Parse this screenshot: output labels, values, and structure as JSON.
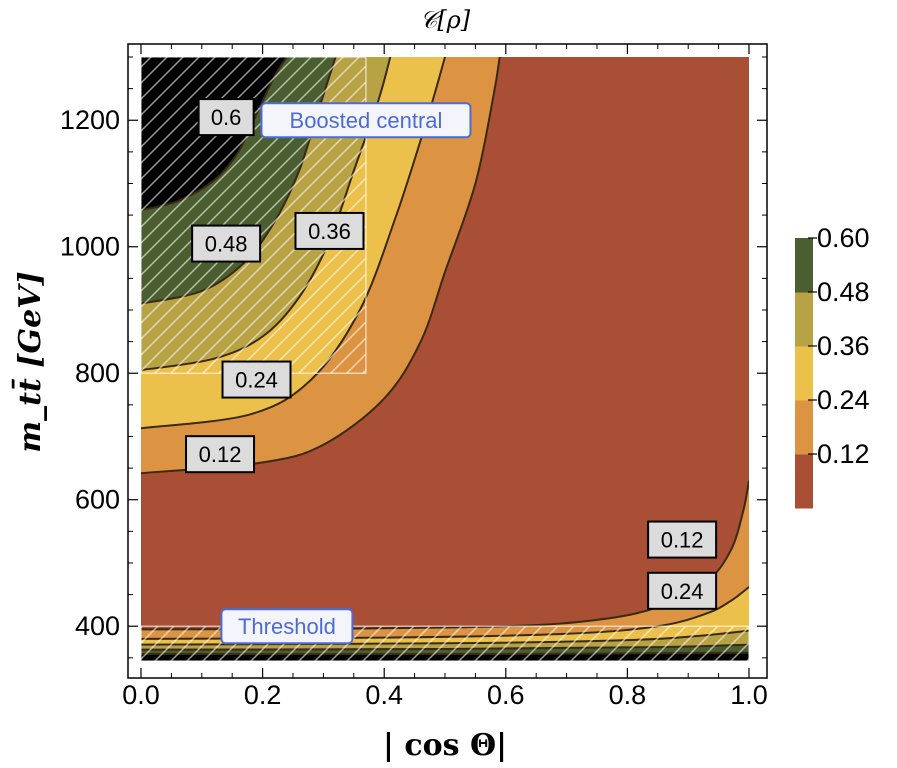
{
  "chart_data": {
    "type": "contour",
    "title": "𝒞[ρ]",
    "xlabel": "| cos Θ|",
    "ylabel": "m_tt̄ [GeV]",
    "xlim": [
      0.0,
      1.0
    ],
    "ylim": [
      345,
      1300
    ],
    "x_ticks": [
      0.0,
      0.2,
      0.4,
      0.6,
      0.8,
      1.0
    ],
    "x_tick_labels": [
      "0.0",
      "0.2",
      "0.4",
      "0.6",
      "0.8",
      "1.0"
    ],
    "y_ticks": [
      400,
      600,
      800,
      1000,
      1200
    ],
    "y_tick_labels": [
      "400",
      "600",
      "800",
      "1000",
      "1200"
    ],
    "contour_levels": [
      0.12,
      0.24,
      0.36,
      0.48,
      0.6
    ],
    "band_colors": [
      "#a84f35",
      "#dc9443",
      "#ecc14b",
      "#b8a344",
      "#4a5e2f"
    ],
    "contours": [
      {
        "level": 0.12,
        "points": [
          [
            0.0,
            642
          ],
          [
            0.2,
            659
          ],
          [
            0.3,
            687
          ],
          [
            0.4,
            760
          ],
          [
            0.46,
            850
          ],
          [
            0.5,
            960
          ],
          [
            0.55,
            1100
          ],
          [
            0.58,
            1240
          ],
          [
            0.59,
            1300
          ]
        ]
      },
      {
        "level": 0.24,
        "points": [
          [
            0.0,
            713
          ],
          [
            0.18,
            735
          ],
          [
            0.28,
            790
          ],
          [
            0.36,
            900
          ],
          [
            0.42,
            1050
          ],
          [
            0.47,
            1200
          ],
          [
            0.5,
            1300
          ]
        ]
      },
      {
        "level": 0.36,
        "points": [
          [
            0.0,
            805
          ],
          [
            0.12,
            823
          ],
          [
            0.2,
            858
          ],
          [
            0.26,
            920
          ],
          [
            0.31,
            1010
          ],
          [
            0.35,
            1120
          ],
          [
            0.39,
            1230
          ],
          [
            0.41,
            1300
          ]
        ]
      },
      {
        "level": 0.48,
        "points": [
          [
            0.0,
            910
          ],
          [
            0.1,
            930
          ],
          [
            0.17,
            975
          ],
          [
            0.22,
            1040
          ],
          [
            0.26,
            1120
          ],
          [
            0.29,
            1210
          ],
          [
            0.32,
            1300
          ]
        ]
      },
      {
        "level": 0.6,
        "points": [
          [
            0.0,
            1058
          ],
          [
            0.06,
            1072
          ],
          [
            0.12,
            1105
          ],
          [
            0.16,
            1150
          ],
          [
            0.19,
            1210
          ],
          [
            0.22,
            1270
          ],
          [
            0.24,
            1300
          ]
        ]
      },
      {
        "level": 0.12,
        "points": [
          [
            0.0,
            395
          ],
          [
            0.3,
            396
          ],
          [
            0.6,
            400
          ],
          [
            0.75,
            410
          ],
          [
            0.85,
            430
          ],
          [
            0.93,
            470
          ],
          [
            0.97,
            520
          ],
          [
            0.99,
            580
          ],
          [
            1.0,
            630
          ]
        ]
      },
      {
        "level": 0.24,
        "points": [
          [
            0.0,
            380
          ],
          [
            0.4,
            382
          ],
          [
            0.7,
            388
          ],
          [
            0.85,
            400
          ],
          [
            0.93,
            420
          ],
          [
            0.97,
            440
          ],
          [
            1.0,
            462
          ]
        ]
      },
      {
        "level": 0.36,
        "points": [
          [
            0.0,
            371
          ],
          [
            0.5,
            373
          ],
          [
            0.8,
            378
          ],
          [
            0.92,
            385
          ],
          [
            1.0,
            393
          ]
        ]
      },
      {
        "level": 0.48,
        "points": [
          [
            0.0,
            363
          ],
          [
            0.5,
            364
          ],
          [
            0.85,
            367
          ],
          [
            1.0,
            371
          ]
        ]
      },
      {
        "level": 0.6,
        "points": [
          [
            0.0,
            356
          ],
          [
            0.6,
            356
          ],
          [
            1.0,
            358
          ]
        ]
      }
    ],
    "contour_labels": [
      {
        "text": "0.6",
        "x": 0.14,
        "y": 1205
      },
      {
        "text": "0.48",
        "x": 0.14,
        "y": 1005
      },
      {
        "text": "0.36",
        "x": 0.31,
        "y": 1025
      },
      {
        "text": "0.24",
        "x": 0.19,
        "y": 790
      },
      {
        "text": "0.12",
        "x": 0.13,
        "y": 672
      },
      {
        "text": "0.12",
        "x": 0.89,
        "y": 537
      },
      {
        "text": "0.24",
        "x": 0.89,
        "y": 456
      }
    ],
    "regions": [
      {
        "name": "Boosted central",
        "x_range": [
          0.0,
          0.37
        ],
        "y_range": [
          800,
          1300
        ],
        "label_x": 0.37,
        "label_y": 1200
      },
      {
        "name": "Threshold",
        "x_range": [
          0.0,
          1.0
        ],
        "y_range": [
          345,
          400
        ],
        "label_x": 0.24,
        "label_y": 400
      }
    ],
    "legend": {
      "placement": "right",
      "colors": [
        "#a84f35",
        "#dc9443",
        "#ecc14b",
        "#b8a344",
        "#4a5e2f"
      ],
      "tick_values": [
        0.12,
        0.24,
        0.36,
        0.48,
        0.6
      ],
      "labels": [
        "0.12",
        "0.24",
        "0.36",
        "0.48",
        "0.60"
      ]
    }
  }
}
